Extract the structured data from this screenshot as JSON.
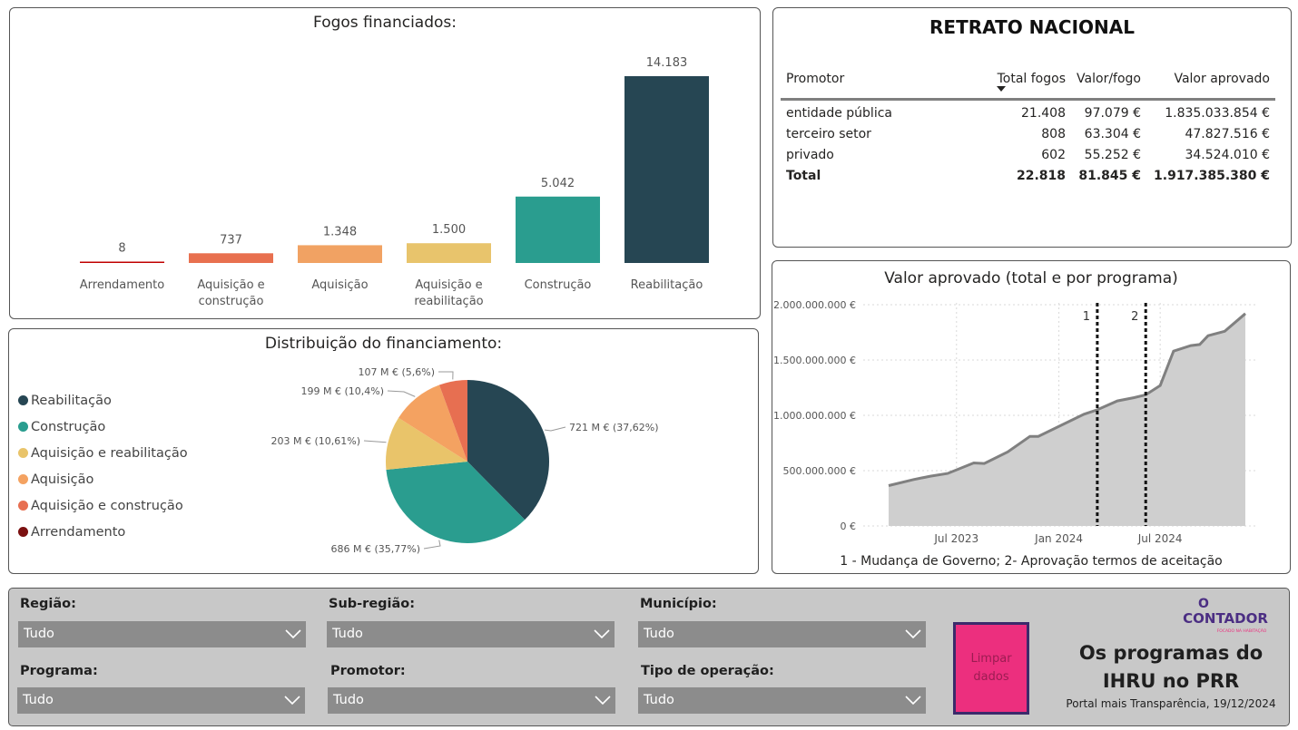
{
  "fogos": {
    "title": "Fogos financiados:",
    "chart_data": {
      "type": "bar",
      "title": "Fogos financiados:",
      "categories": [
        "Arrendamento",
        "Aquisição e construção",
        "Aquisição",
        "Aquisição e reabilitação",
        "Construção",
        "Reabilitação"
      ],
      "category_lines": [
        [
          "Arrendamento"
        ],
        [
          "Aquisição e",
          "construção"
        ],
        [
          "Aquisição"
        ],
        [
          "Aquisição e",
          "reabilitação"
        ],
        [
          "Construção"
        ],
        [
          "Reabilitação"
        ]
      ],
      "values": [
        8,
        737,
        1348,
        1500,
        5042,
        14183
      ],
      "data_labels": [
        "8",
        "737",
        "1.348",
        "1.500",
        "5.042",
        "14.183"
      ],
      "colors": [
        "#c00000",
        "#e8704f",
        "#f1a263",
        "#e8c46c",
        "#2a9d8f",
        "#264653"
      ],
      "ylim": [
        0,
        14183
      ]
    }
  },
  "retrato": {
    "title": "RETRATO NACIONAL",
    "headers": [
      "Promotor",
      "Total fogos",
      "Valor/fogo",
      "Valor aprovado"
    ],
    "rows": [
      [
        "entidade pública",
        "21.408",
        "97.079 €",
        "1.835.033.854 €"
      ],
      [
        "terceiro setor",
        "808",
        "63.304 €",
        "47.827.516 €"
      ],
      [
        "privado",
        "602",
        "55.252 €",
        "34.524.010 €"
      ]
    ],
    "total": [
      "Total",
      "22.818",
      "81.845 €",
      "1.917.385.380 €"
    ]
  },
  "distribuicao": {
    "title": "Distribuição do financiamento:",
    "legend": [
      {
        "label": "Reabilitação",
        "color": "#264653"
      },
      {
        "label": "Construção",
        "color": "#2a9d8f"
      },
      {
        "label": "Aquisição e reabilitação",
        "color": "#e9c46a"
      },
      {
        "label": "Aquisição",
        "color": "#f4a261"
      },
      {
        "label": "Aquisição e construção",
        "color": "#e76f51"
      },
      {
        "label": "Arrendamento",
        "color": "#7b1010"
      }
    ],
    "chart_data": {
      "type": "pie",
      "title": "Distribuição do financiamento:",
      "slices": [
        {
          "name": "Reabilitação",
          "value": 721,
          "percent": 37.62,
          "label": "721 M € (37,62%)",
          "color": "#264653"
        },
        {
          "name": "Construção",
          "value": 686,
          "percent": 35.77,
          "label": "686 M € (35,77%)",
          "color": "#2a9d8f"
        },
        {
          "name": "Aquisição e reabilitação",
          "value": 203,
          "percent": 10.61,
          "label": "203 M € (10,61%)",
          "color": "#e9c46a"
        },
        {
          "name": "Aquisição",
          "value": 199,
          "percent": 10.4,
          "label": "199 M € (10,4%)",
          "color": "#f4a261"
        },
        {
          "name": "Aquisição e construção",
          "value": 107,
          "percent": 5.6,
          "label": "107 M € (5,6%)",
          "color": "#e76f51"
        },
        {
          "name": "Arrendamento",
          "value": 0.5,
          "percent": 0.0,
          "label": "",
          "color": "#7b1010"
        }
      ]
    }
  },
  "valor": {
    "title": "Valor aprovado (total e por programa)",
    "footnote": "1 - Mudança de Governo; 2- Aprovação termos de aceitação",
    "chart_data": {
      "type": "area",
      "title": "Valor aprovado (total e por programa)",
      "x_start": "2023-03-01",
      "x_end": "2024-12-19",
      "x_ticks": [
        {
          "date": "2023-07-01",
          "label": "Jul 2023"
        },
        {
          "date": "2024-01-01",
          "label": "Jan 2024"
        },
        {
          "date": "2024-07-01",
          "label": "Jul 2024"
        }
      ],
      "y_ticks": [
        {
          "value": 0,
          "label": "0 €"
        },
        {
          "value": 500000000,
          "label": "500.000.000 €"
        },
        {
          "value": 1000000000,
          "label": "1.000.000.000 €"
        },
        {
          "value": 1500000000,
          "label": "1.500.000.000 €"
        },
        {
          "value": 2000000000,
          "label": "2.000.000.000 €"
        }
      ],
      "ylim": [
        0,
        2000000000
      ],
      "points": [
        [
          "2023-03-01",
          365000000
        ],
        [
          "2023-04-15",
          420000000
        ],
        [
          "2023-05-15",
          450000000
        ],
        [
          "2023-06-15",
          475000000
        ],
        [
          "2023-08-01",
          570000000
        ],
        [
          "2023-08-20",
          565000000
        ],
        [
          "2023-10-01",
          670000000
        ],
        [
          "2023-11-10",
          810000000
        ],
        [
          "2023-11-25",
          810000000
        ],
        [
          "2024-02-15",
          1010000000
        ],
        [
          "2024-03-10",
          1050000000
        ],
        [
          "2024-04-15",
          1130000000
        ],
        [
          "2024-05-15",
          1160000000
        ],
        [
          "2024-06-05",
          1185000000
        ],
        [
          "2024-07-01",
          1270000000
        ],
        [
          "2024-07-25",
          1580000000
        ],
        [
          "2024-08-25",
          1630000000
        ],
        [
          "2024-09-10",
          1640000000
        ],
        [
          "2024-09-25",
          1720000000
        ],
        [
          "2024-10-25",
          1760000000
        ],
        [
          "2024-12-01",
          1920000000
        ]
      ],
      "markers": [
        {
          "date": "2024-03-10",
          "label": "1"
        },
        {
          "date": "2024-06-05",
          "label": "2"
        }
      ]
    }
  },
  "filters": {
    "regiao": {
      "label": "Região:",
      "value": "Tudo"
    },
    "subregiao": {
      "label": "Sub-região:",
      "value": "Tudo"
    },
    "municipio": {
      "label": "Município:",
      "value": "Tudo"
    },
    "programa": {
      "label": "Programa:",
      "value": "Tudo"
    },
    "promotor": {
      "label": "Promotor:",
      "value": "Tudo"
    },
    "tipo": {
      "label": "Tipo de operação:",
      "value": "Tudo"
    },
    "clear_label": "Limpar dados"
  },
  "brand": {
    "logo_top": "O",
    "logo_name": "CONTADOR",
    "logo_tag": "FOCADO NA HABITAÇÃO",
    "title": "Os programas do IHRU no PRR",
    "subtitle": "Portal mais Transparência, 19/12/2024",
    "accent": "#ec2f7e"
  }
}
